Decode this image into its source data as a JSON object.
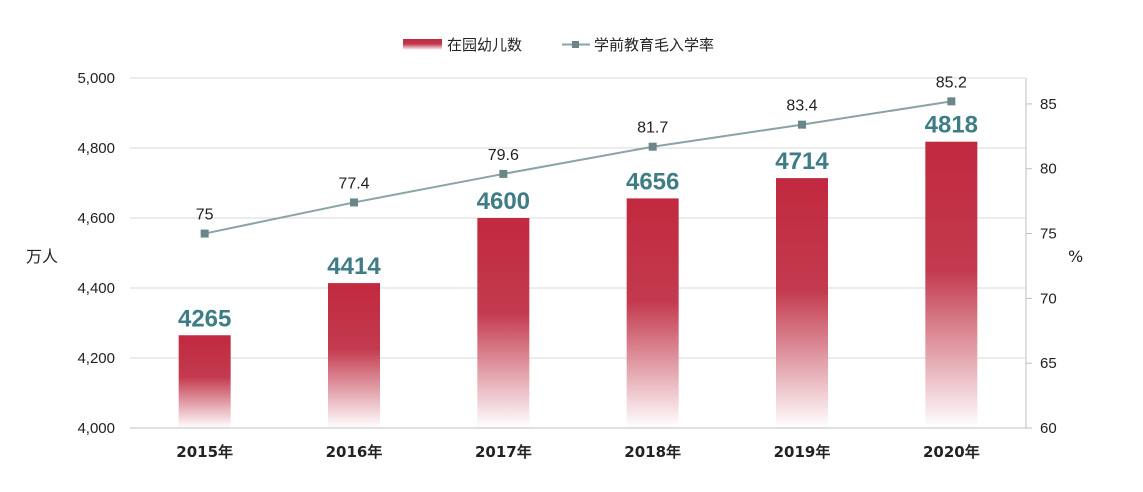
{
  "chart_data": {
    "type": "bar",
    "categories": [
      "2015年",
      "2016年",
      "2017年",
      "2018年",
      "2019年",
      "2020年"
    ],
    "series": [
      {
        "name": "在园幼儿数",
        "type": "bar",
        "axis": "left",
        "values": [
          4265,
          4414,
          4600,
          4656,
          4714,
          4818
        ]
      },
      {
        "name": "学前教育毛入学率",
        "type": "line",
        "axis": "right",
        "values": [
          75,
          77.4,
          79.6,
          81.7,
          83.4,
          85.2
        ]
      }
    ],
    "bar_labels": [
      "4265",
      "4414",
      "4600",
      "4656",
      "4714",
      "4818"
    ],
    "line_labels": [
      "75",
      "77.4",
      "79.6",
      "81.7",
      "83.4",
      "85.2"
    ],
    "left_axis": {
      "label": "万人",
      "range": [
        4000,
        5000
      ],
      "ticks": [
        4000,
        4200,
        4400,
        4600,
        4800,
        5000
      ],
      "tick_labels": [
        "4,000",
        "4,200",
        "4,400",
        "4,600",
        "4,800",
        "5,000"
      ]
    },
    "right_axis": {
      "label": "%",
      "range": [
        60,
        87
      ],
      "ticks": [
        60,
        65,
        70,
        75,
        80,
        85
      ],
      "tick_labels": [
        "60",
        "65",
        "70",
        "75",
        "80",
        "85"
      ]
    },
    "legend": {
      "position": "top-center",
      "items": [
        {
          "name": "在园幼儿数",
          "marker": "bar"
        },
        {
          "name": "学前教育毛入学率",
          "marker": "line-square"
        }
      ]
    },
    "grid": true,
    "colors": {
      "bar_top": "#c1293f",
      "bar_bottom": "#ffffff",
      "line": "#8aa3a6",
      "marker": "#6a8689",
      "bar_label": "#3e7d86",
      "grid": "#d9d9d9"
    }
  }
}
